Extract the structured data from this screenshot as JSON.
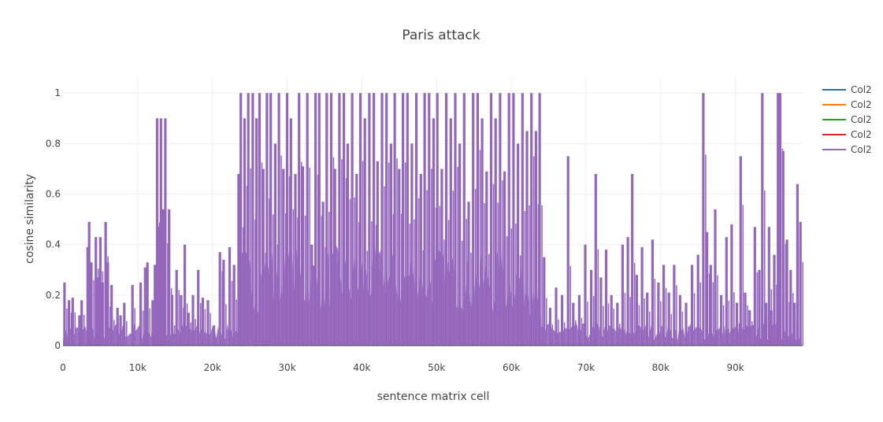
{
  "chart_data": {
    "type": "line",
    "title": "Paris attack",
    "xlabel": "sentence matrix cell",
    "ylabel": "cosine similarity",
    "xlim": [
      0,
      99000
    ],
    "ylim": [
      0,
      1.06
    ],
    "x_ticks": [
      0,
      10000,
      20000,
      30000,
      40000,
      50000,
      60000,
      70000,
      80000,
      90000
    ],
    "x_tick_labels": [
      "0",
      "10k",
      "20k",
      "30k",
      "40k",
      "50k",
      "60k",
      "70k",
      "80k",
      "90k"
    ],
    "y_ticks": [
      0,
      0.2,
      0.4,
      0.6,
      0.8,
      1
    ],
    "y_tick_labels": [
      "0",
      "0.2",
      "0.4",
      "0.6",
      "0.8",
      "1"
    ],
    "grid": true,
    "legend_position": "top-right",
    "series": [
      {
        "name": "Col2",
        "color": "#1f77b4"
      },
      {
        "name": "Col2",
        "color": "#ff7f0e"
      },
      {
        "name": "Col2",
        "color": "#2ca02c"
      },
      {
        "name": "Col2",
        "color": "#d62728"
      },
      {
        "name": "Col2",
        "color": "#9467bd"
      }
    ],
    "visible_series_color": "#9467bd",
    "spikes": [
      [
        200,
        0.25
      ],
      [
        800,
        0.18
      ],
      [
        1300,
        0.19
      ],
      [
        2200,
        0.12
      ],
      [
        2500,
        0.18
      ],
      [
        3300,
        0.39
      ],
      [
        3500,
        0.49
      ],
      [
        3800,
        0.33
      ],
      [
        4400,
        0.43
      ],
      [
        4700,
        0.27
      ],
      [
        5000,
        0.43
      ],
      [
        5300,
        0.25
      ],
      [
        5700,
        0.49
      ],
      [
        6000,
        0.33
      ],
      [
        6500,
        0.24
      ],
      [
        7300,
        0.15
      ],
      [
        7700,
        0.12
      ],
      [
        8200,
        0.17
      ],
      [
        9300,
        0.24
      ],
      [
        10400,
        0.25
      ],
      [
        11000,
        0.31
      ],
      [
        11300,
        0.33
      ],
      [
        12000,
        0.18
      ],
      [
        12300,
        0.32
      ],
      [
        12600,
        0.9
      ],
      [
        12900,
        0.47
      ],
      [
        13100,
        0.9
      ],
      [
        13400,
        0.54
      ],
      [
        13700,
        0.9
      ],
      [
        14200,
        0.54
      ],
      [
        14600,
        0.2
      ],
      [
        15200,
        0.3
      ],
      [
        15800,
        0.2
      ],
      [
        16300,
        0.4
      ],
      [
        16800,
        0.13
      ],
      [
        17400,
        0.2
      ],
      [
        18100,
        0.3
      ],
      [
        18700,
        0.19
      ],
      [
        19400,
        0.18
      ],
      [
        20200,
        0.08
      ],
      [
        21000,
        0.37
      ],
      [
        21500,
        0.34
      ],
      [
        22300,
        0.39
      ],
      [
        22900,
        0.32
      ],
      [
        23500,
        0.68
      ],
      [
        23800,
        1
      ],
      [
        24300,
        0.9
      ],
      [
        24800,
        1
      ],
      [
        25400,
        1
      ],
      [
        25900,
        0.9
      ],
      [
        26300,
        1
      ],
      [
        26800,
        0.7
      ],
      [
        27300,
        1
      ],
      [
        27800,
        1
      ],
      [
        28400,
        0.8
      ],
      [
        28900,
        1
      ],
      [
        29500,
        0.7
      ],
      [
        30000,
        1
      ],
      [
        30500,
        0.9
      ],
      [
        31100,
        0.68
      ],
      [
        31600,
        1
      ],
      [
        32100,
        0.71
      ],
      [
        32700,
        1
      ],
      [
        33300,
        0.4
      ],
      [
        33800,
        1
      ],
      [
        34300,
        1
      ],
      [
        34800,
        0.57
      ],
      [
        35300,
        1
      ],
      [
        35900,
        1
      ],
      [
        36400,
        0.7
      ],
      [
        37000,
        1
      ],
      [
        37600,
        1
      ],
      [
        38100,
        0.8
      ],
      [
        38700,
        1
      ],
      [
        39300,
        0.68
      ],
      [
        39800,
        1
      ],
      [
        40400,
        0.9
      ],
      [
        41000,
        1
      ],
      [
        41600,
        1
      ],
      [
        42100,
        0.73
      ],
      [
        42700,
        1
      ],
      [
        43300,
        1
      ],
      [
        43900,
        0.8
      ],
      [
        44400,
        1
      ],
      [
        45000,
        0.7
      ],
      [
        45500,
        1
      ],
      [
        46100,
        1
      ],
      [
        46700,
        0.8
      ],
      [
        47300,
        1
      ],
      [
        47900,
        0.68
      ],
      [
        48400,
        1
      ],
      [
        49000,
        1
      ],
      [
        49600,
        0.9
      ],
      [
        50100,
        1
      ],
      [
        50700,
        0.7
      ],
      [
        51300,
        1
      ],
      [
        51900,
        0.9
      ],
      [
        52500,
        1
      ],
      [
        53100,
        0.8
      ],
      [
        53700,
        1
      ],
      [
        54300,
        0.57
      ],
      [
        54900,
        1
      ],
      [
        55500,
        1
      ],
      [
        56100,
        0.9
      ],
      [
        56700,
        0.69
      ],
      [
        57300,
        1
      ],
      [
        57900,
        0.9
      ],
      [
        58500,
        1
      ],
      [
        59100,
        0.69
      ],
      [
        59700,
        1
      ],
      [
        60300,
        1
      ],
      [
        60900,
        0.8
      ],
      [
        61500,
        1
      ],
      [
        62100,
        0.85
      ],
      [
        62700,
        1
      ],
      [
        63300,
        0.85
      ],
      [
        63800,
        1
      ],
      [
        64400,
        0.35
      ],
      [
        65200,
        0.15
      ],
      [
        66000,
        0.23
      ],
      [
        66800,
        0.2
      ],
      [
        67600,
        0.75
      ],
      [
        68300,
        0.17
      ],
      [
        69100,
        0.2
      ],
      [
        69900,
        0.4
      ],
      [
        70700,
        0.3
      ],
      [
        71300,
        0.68
      ],
      [
        72000,
        0.27
      ],
      [
        72700,
        0.38
      ],
      [
        73400,
        0.2
      ],
      [
        74200,
        0.17
      ],
      [
        74900,
        0.4
      ],
      [
        75600,
        0.43
      ],
      [
        76200,
        0.68
      ],
      [
        76800,
        0.28
      ],
      [
        77500,
        0.39
      ],
      [
        78200,
        0.21
      ],
      [
        78900,
        0.42
      ],
      [
        79700,
        0.25
      ],
      [
        80400,
        0.32
      ],
      [
        81100,
        0.21
      ],
      [
        81800,
        0.32
      ],
      [
        82600,
        0.2
      ],
      [
        83400,
        0.17
      ],
      [
        84200,
        0.32
      ],
      [
        85000,
        0.36
      ],
      [
        85700,
        1
      ],
      [
        86200,
        0.45
      ],
      [
        86700,
        0.32
      ],
      [
        87300,
        0.54
      ],
      [
        88100,
        0.2
      ],
      [
        88800,
        0.43
      ],
      [
        89500,
        0.48
      ],
      [
        90200,
        0.17
      ],
      [
        90700,
        0.75
      ],
      [
        91300,
        0.21
      ],
      [
        91900,
        0.14
      ],
      [
        92600,
        0.47
      ],
      [
        93200,
        0.3
      ],
      [
        93600,
        1
      ],
      [
        94100,
        0.17
      ],
      [
        94500,
        0.47
      ],
      [
        94800,
        0.14
      ],
      [
        95200,
        0.36
      ],
      [
        95700,
        1
      ],
      [
        96000,
        1
      ],
      [
        96400,
        0.77
      ],
      [
        96900,
        0.42
      ],
      [
        97400,
        0.3
      ],
      [
        97900,
        0.17
      ],
      [
        98300,
        0.64
      ],
      [
        98700,
        0.49
      ]
    ]
  }
}
